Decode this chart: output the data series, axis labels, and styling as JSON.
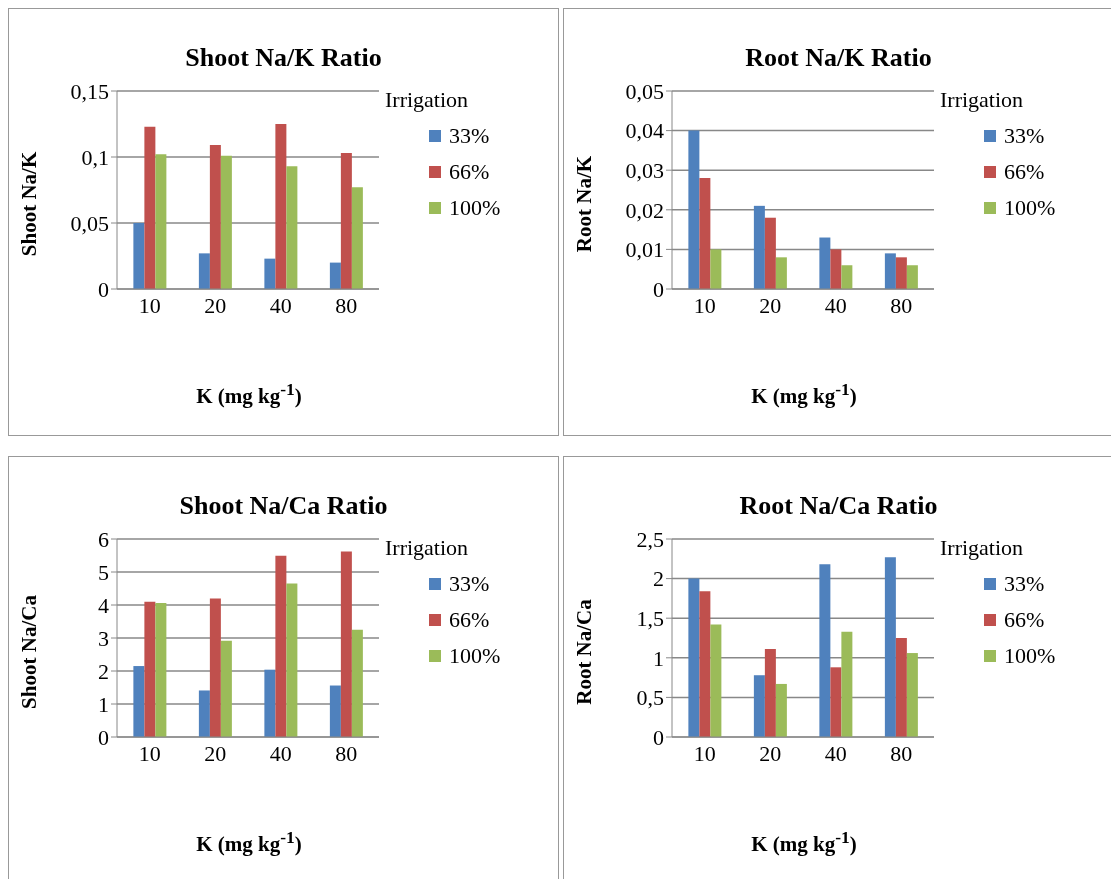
{
  "chart_data": [
    {
      "type": "bar",
      "title": "Shoot Na/K Ratio",
      "xlabel": "K (mg kg$^{-1}$)",
      "ylabel": "Shoot Na/K",
      "legend_title": "Irrigation",
      "legend": "right",
      "grid": "y",
      "categories": [
        "10",
        "20",
        "40",
        "80"
      ],
      "ylim": [
        0,
        0.15
      ],
      "yticks": [
        0,
        {
          "value": 0.05,
          "label": "0,05"
        },
        {
          "value": 0.1,
          "label": "0,1"
        },
        {
          "value": 0.15,
          "label": "0,15"
        }
      ],
      "series": [
        {
          "name": "33%",
          "color": "#4f81bd",
          "values": [
            0.05,
            0.027,
            0.023,
            0.02
          ]
        },
        {
          "name": "66%",
          "color": "#c0504d",
          "values": [
            0.123,
            0.109,
            0.125,
            0.103
          ]
        },
        {
          "name": "100%",
          "color": "#9bbb59",
          "values": [
            0.102,
            0.101,
            0.093,
            0.077
          ]
        }
      ]
    },
    {
      "type": "bar",
      "title": "Root Na/K Ratio",
      "xlabel": "K (mg kg$^{-1}$)",
      "ylabel": "Root Na/K",
      "legend_title": "Irrigation",
      "legend": "right",
      "grid": "y",
      "categories": [
        "10",
        "20",
        "40",
        "80"
      ],
      "ylim": [
        0,
        0.05
      ],
      "yticks": [
        0,
        {
          "value": 0.01,
          "label": "0,01"
        },
        {
          "value": 0.02,
          "label": "0,02"
        },
        {
          "value": 0.03,
          "label": "0,03"
        },
        {
          "value": 0.04,
          "label": "0,04"
        },
        {
          "value": 0.05,
          "label": "0,05"
        }
      ],
      "series": [
        {
          "name": "33%",
          "color": "#4f81bd",
          "values": [
            0.04,
            0.021,
            0.013,
            0.009
          ]
        },
        {
          "name": "66%",
          "color": "#c0504d",
          "values": [
            0.028,
            0.018,
            0.01,
            0.008
          ]
        },
        {
          "name": "100%",
          "color": "#9bbb59",
          "values": [
            0.01,
            0.008,
            0.006,
            0.006
          ]
        }
      ]
    },
    {
      "type": "bar",
      "title": "Shoot Na/Ca Ratio",
      "xlabel": "K (mg kg$^{-1}$)",
      "ylabel": "Shoot Na/Ca",
      "legend_title": "Irrigation",
      "legend": "right",
      "grid": "y",
      "categories": [
        "10",
        "20",
        "40",
        "80"
      ],
      "ylim": [
        0,
        6
      ],
      "yticks": [
        0,
        1,
        2,
        3,
        4,
        5,
        6
      ],
      "series": [
        {
          "name": "33%",
          "color": "#4f81bd",
          "values": [
            2.15,
            1.41,
            2.04,
            1.56
          ]
        },
        {
          "name": "66%",
          "color": "#c0504d",
          "values": [
            4.1,
            4.2,
            5.49,
            5.62
          ]
        },
        {
          "name": "100%",
          "color": "#9bbb59",
          "values": [
            4.06,
            2.92,
            4.65,
            3.25
          ]
        }
      ]
    },
    {
      "type": "bar",
      "title": "Root Na/Ca Ratio",
      "xlabel": "K (mg kg$^{-1}$)",
      "ylabel": "Root Na/Ca",
      "legend_title": "Irrigation",
      "legend": "right",
      "grid": "y",
      "categories": [
        "10",
        "20",
        "40",
        "80"
      ],
      "ylim": [
        0,
        2.5
      ],
      "yticks": [
        0,
        {
          "value": 0.5,
          "label": "0,5"
        },
        1,
        {
          "value": 1.5,
          "label": "1,5"
        },
        2,
        {
          "value": 2.5,
          "label": "2,5"
        }
      ],
      "series": [
        {
          "name": "33%",
          "color": "#4f81bd",
          "values": [
            2.0,
            0.78,
            2.18,
            2.27
          ]
        },
        {
          "name": "66%",
          "color": "#c0504d",
          "values": [
            1.84,
            1.11,
            0.88,
            1.25
          ]
        },
        {
          "name": "100%",
          "color": "#9bbb59",
          "values": [
            1.42,
            0.67,
            1.33,
            1.06
          ]
        }
      ]
    }
  ]
}
